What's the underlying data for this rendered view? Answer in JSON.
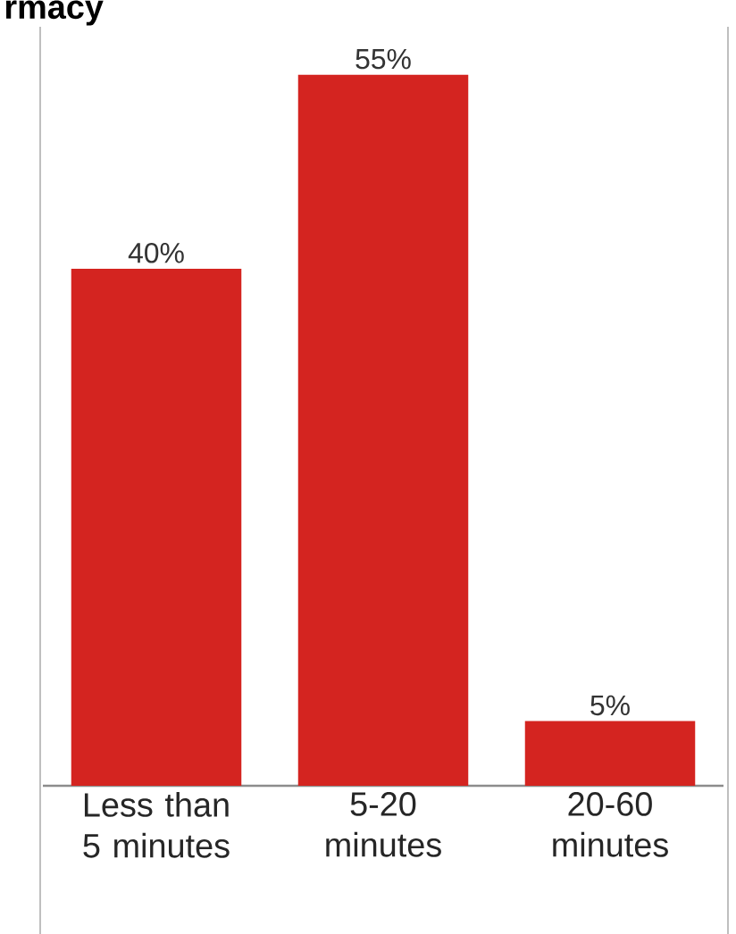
{
  "chart_data": {
    "type": "bar",
    "title": "rmacy",
    "categories": [
      "Less than 5 minutes",
      "5-20 minutes",
      "20-60 minutes"
    ],
    "values": [
      40,
      55,
      5
    ],
    "value_labels": [
      "40%",
      "55%",
      "5%"
    ],
    "color": "#d42420"
  }
}
